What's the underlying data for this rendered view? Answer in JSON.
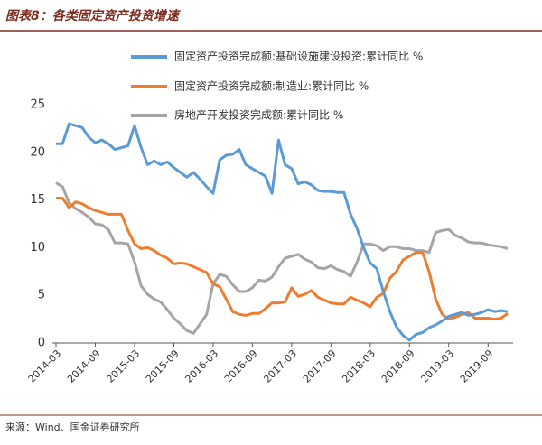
{
  "chart_data": {
    "type": "line",
    "title": "图表8：各类固定资产投资增速",
    "source": "来源：Wind、国金证券研究所",
    "categories": [
      "2014-03",
      null,
      null,
      null,
      null,
      null,
      "2014-09",
      null,
      null,
      null,
      null,
      null,
      "2015-03",
      null,
      null,
      null,
      null,
      null,
      "2015-09",
      null,
      null,
      null,
      null,
      null,
      "2016-03",
      null,
      null,
      null,
      null,
      null,
      "2016-09",
      null,
      null,
      null,
      null,
      null,
      "2017-03",
      null,
      null,
      null,
      null,
      null,
      "2017-09",
      null,
      null,
      null,
      null,
      null,
      "2018-03",
      null,
      null,
      null,
      null,
      null,
      "2018-09",
      null,
      null,
      null,
      null,
      null,
      "2019-03",
      null,
      null,
      null,
      null,
      null,
      "2019-09",
      null,
      null,
      null
    ],
    "series": [
      {
        "name": "固定资产投资完成额:基础设施建设投资:累计同比 %",
        "color": "#5b9bd5",
        "values": [
          20.9,
          20.9,
          23.0,
          22.8,
          22.6,
          21.6,
          21.0,
          21.3,
          20.9,
          20.3,
          20.5,
          20.7,
          22.8,
          20.5,
          18.7,
          19.1,
          18.7,
          19.0,
          18.4,
          17.9,
          17.4,
          17.9,
          17.2,
          16.4,
          15.7,
          19.2,
          19.7,
          19.8,
          20.3,
          18.7,
          18.3,
          17.9,
          17.5,
          15.7,
          21.3,
          18.7,
          18.3,
          16.7,
          16.9,
          16.6,
          16.0,
          15.9,
          15.9,
          15.8,
          15.8,
          13.5,
          12.0,
          10.0,
          8.4,
          7.8,
          5.4,
          3.3,
          1.7,
          0.8,
          0.3,
          0.9,
          1.1,
          1.6,
          1.9,
          2.3,
          2.8,
          3.0,
          3.2,
          2.9,
          3.0,
          3.2,
          3.5,
          3.3,
          3.4,
          3.3
        ]
      },
      {
        "name": "固定资产投资完成额:制造业:累计同比 %",
        "color": "#ed7d31",
        "values": [
          15.2,
          15.2,
          14.2,
          14.8,
          14.6,
          14.2,
          13.9,
          13.7,
          13.5,
          13.5,
          13.5,
          11.8,
          10.4,
          9.9,
          10.0,
          9.7,
          9.2,
          8.9,
          8.3,
          8.4,
          8.3,
          8.0,
          7.7,
          7.4,
          6.2,
          5.9,
          4.6,
          3.3,
          3.0,
          2.9,
          3.1,
          3.1,
          3.6,
          4.2,
          4.2,
          4.3,
          5.8,
          4.9,
          5.1,
          5.5,
          4.8,
          4.5,
          4.2,
          4.1,
          4.1,
          4.8,
          4.5,
          4.2,
          3.8,
          4.8,
          5.2,
          6.8,
          7.5,
          8.7,
          9.1,
          9.5,
          9.5,
          7.5,
          4.6,
          3.0,
          2.5,
          2.7,
          3.0,
          3.2,
          2.6,
          2.6,
          2.6,
          2.5,
          2.6,
          3.1
        ]
      },
      {
        "name": "房地产开发投资完成额:累计同比 %",
        "color": "#a5a5a5",
        "values": [
          16.8,
          16.4,
          14.7,
          14.1,
          13.7,
          13.2,
          12.5,
          12.4,
          11.9,
          10.5,
          10.5,
          10.4,
          8.5,
          6.0,
          5.1,
          4.6,
          4.3,
          3.5,
          2.6,
          2.0,
          1.3,
          1.0,
          2.0,
          3.0,
          6.2,
          7.2,
          7.0,
          6.1,
          5.4,
          5.4,
          5.8,
          6.6,
          6.5,
          6.9,
          8.0,
          8.9,
          9.1,
          9.3,
          8.8,
          8.5,
          7.9,
          7.8,
          8.1,
          7.7,
          7.5,
          7.0,
          8.5,
          10.4,
          10.4,
          10.2,
          9.7,
          10.1,
          10.1,
          9.9,
          9.9,
          9.7,
          9.7,
          9.5,
          11.6,
          11.8,
          11.9,
          11.3,
          11.0,
          10.6,
          10.5,
          10.5,
          10.3,
          10.2,
          10.1,
          9.9
        ]
      }
    ],
    "ylim": [
      0,
      25
    ],
    "yticks": [
      0,
      5,
      10,
      15,
      20,
      25
    ],
    "grid": false
  }
}
